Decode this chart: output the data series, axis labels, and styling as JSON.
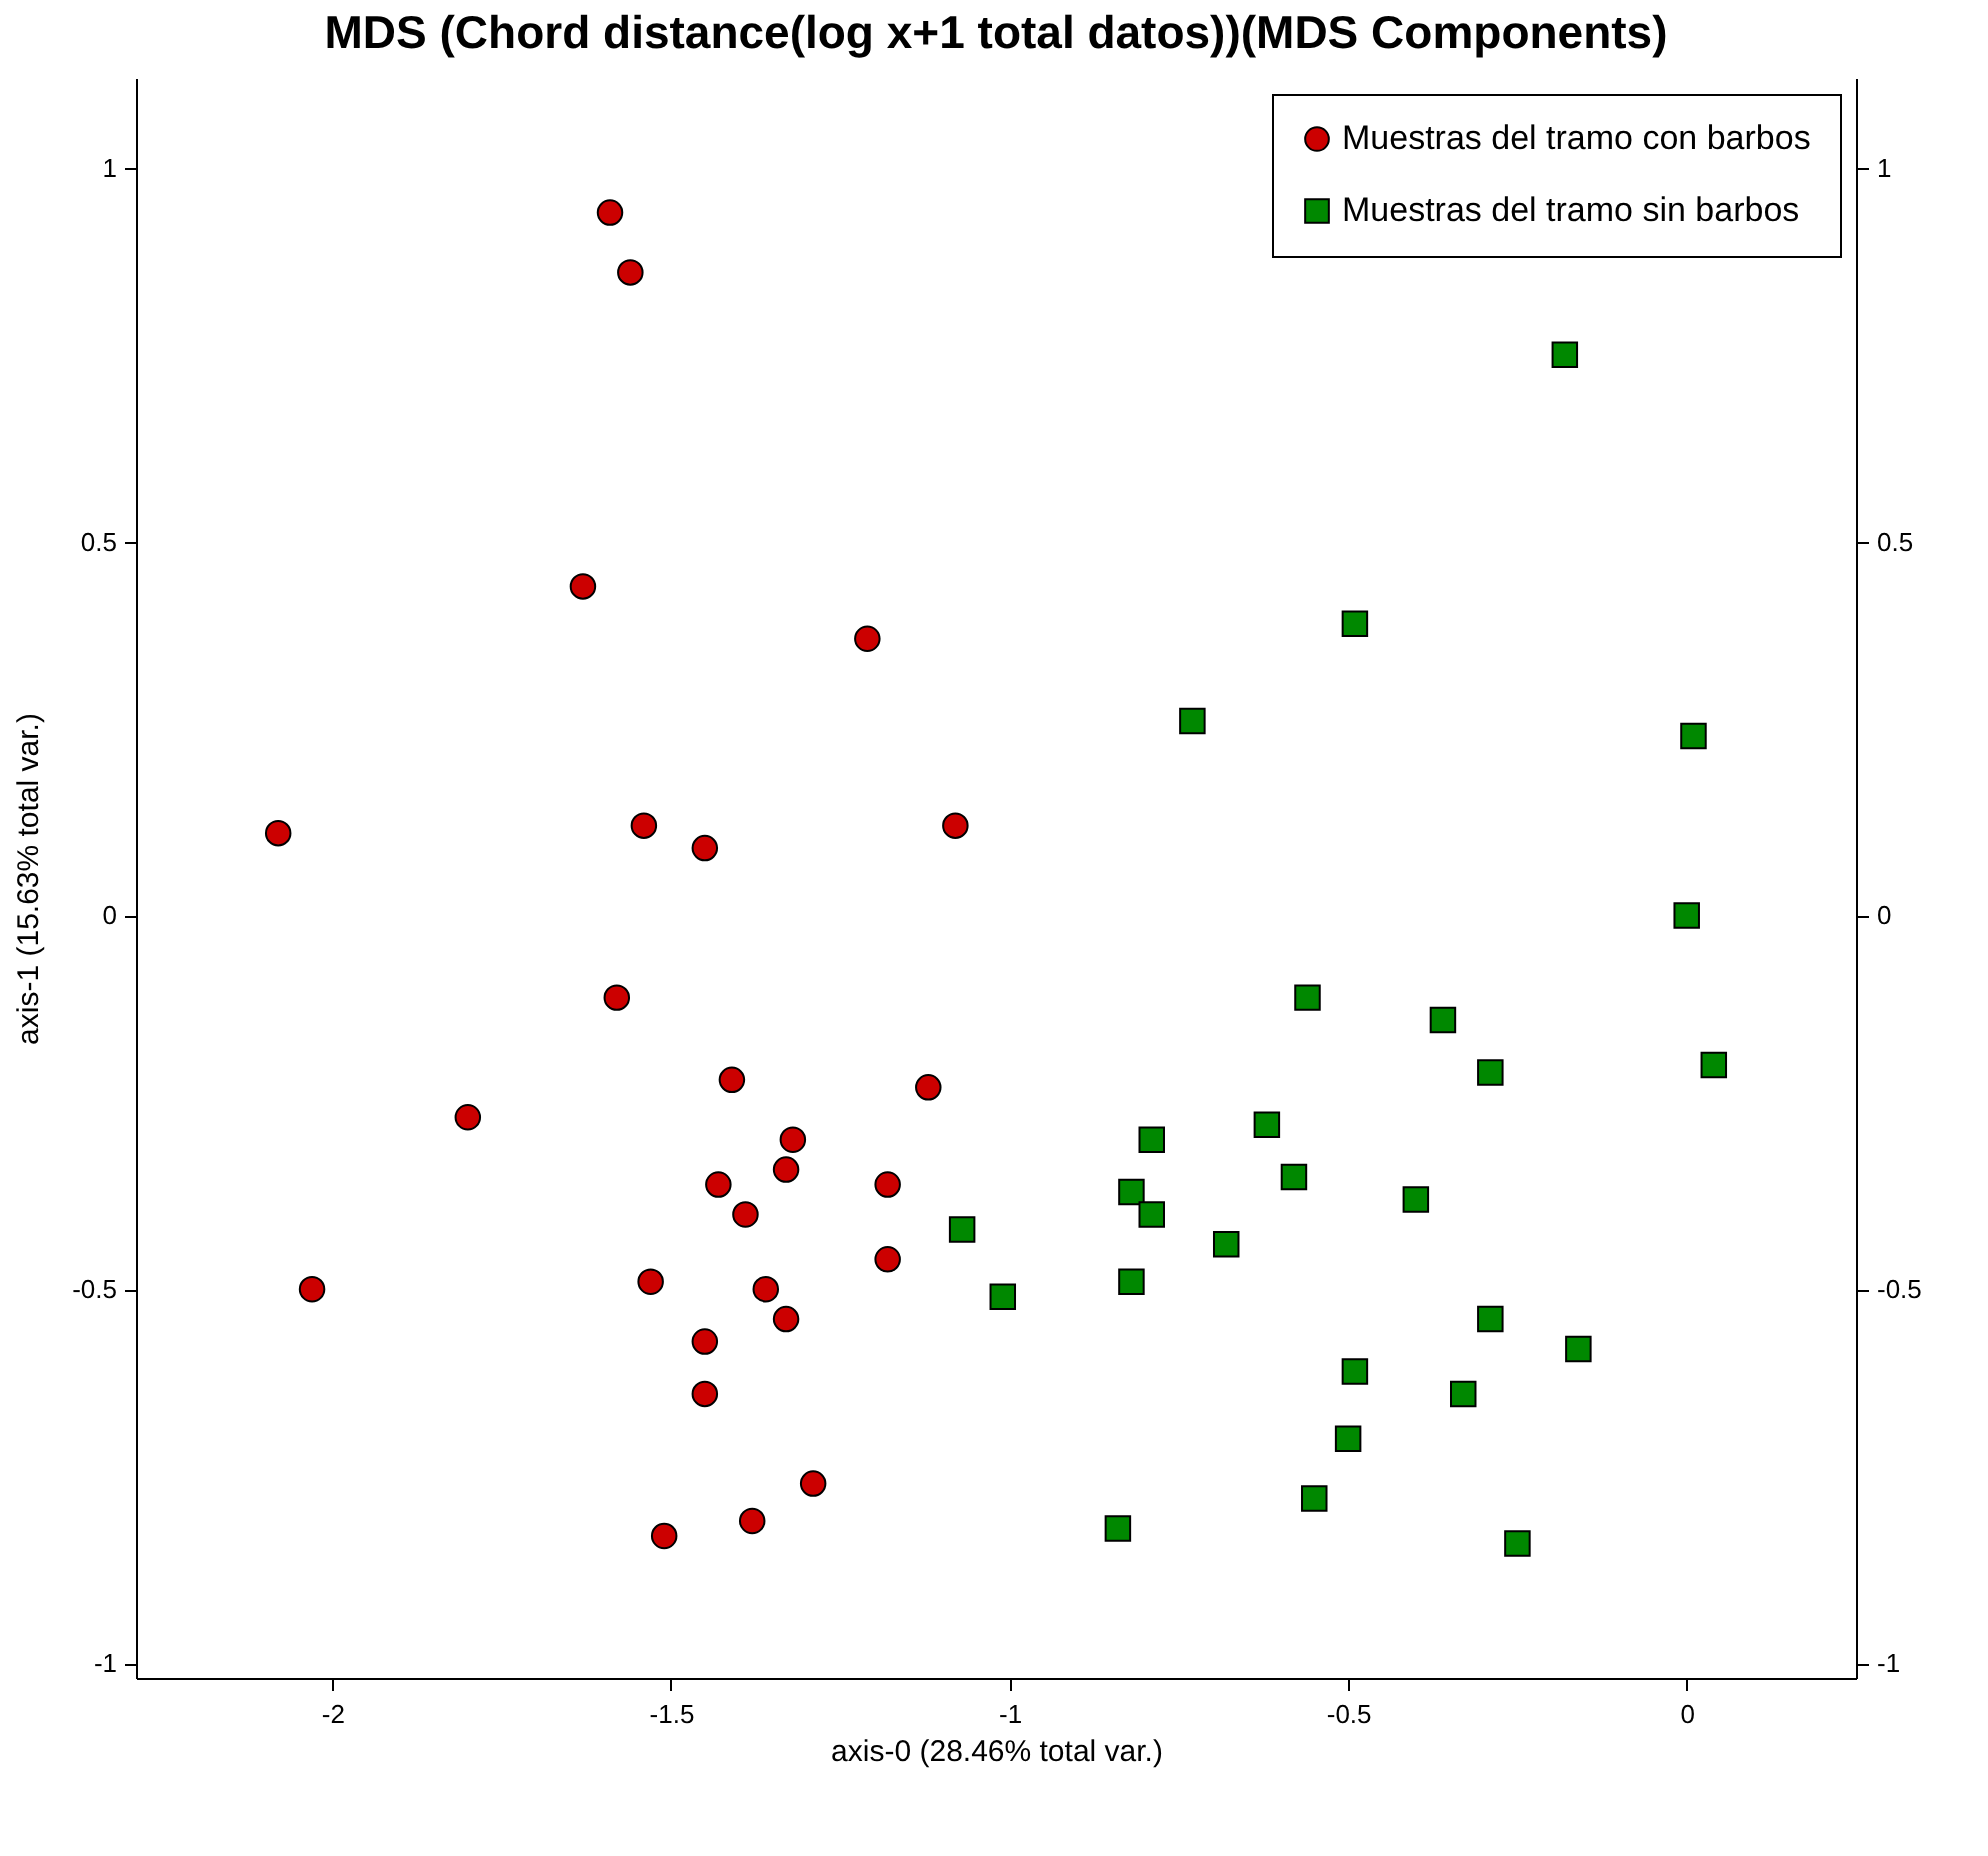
{
  "chart_data": {
    "type": "scatter",
    "title": "MDS (Chord distance(log x+1 total datos))(MDS Components)",
    "xlabel": "axis-0 (28.46% total var.)",
    "ylabel": "axis-1 (15.63% total var.)",
    "xlim": [
      -2.29,
      0.25
    ],
    "xticks": [
      -2,
      -1.5,
      -1,
      -0.5,
      0
    ],
    "ylim": [
      -1.02,
      1.12
    ],
    "yticks": [
      -1,
      -0.5,
      0,
      0.5,
      1
    ],
    "y2lim": [
      -1.02,
      1.12
    ],
    "y2ticks": [
      -1,
      -0.5,
      0,
      0.5,
      1
    ],
    "grid": false,
    "legend": "top right",
    "series": [
      {
        "name": "Muestras del tramo con barbos",
        "color": "#cc0000",
        "marker": "circle",
        "x": [
          -2.08,
          -1.59,
          -1.56,
          -1.63,
          -1.21,
          -1.54,
          -1.45,
          -1.08,
          -1.58,
          -1.8,
          -1.41,
          -1.12,
          -1.32,
          -1.33,
          -1.43,
          -1.39,
          -1.18,
          -1.18,
          -2.03,
          -1.53,
          -1.36,
          -1.33,
          -1.45,
          -1.45,
          -1.29,
          -1.38,
          -1.51
        ],
        "values": [
          0.11,
          0.94,
          0.86,
          0.44,
          0.37,
          0.12,
          0.09,
          0.12,
          -0.11,
          -0.27,
          -0.22,
          -0.23,
          -0.3,
          -0.34,
          -0.36,
          -0.4,
          -0.36,
          -0.46,
          -0.5,
          -0.49,
          -0.5,
          -0.54,
          -0.57,
          -0.64,
          -0.76,
          -0.81,
          -0.83
        ]
      },
      {
        "name": "Muestras del tramo sin barbos",
        "color": "#008800",
        "marker": "square",
        "x": [
          -0.18,
          -0.49,
          -0.73,
          0.01,
          0,
          -0.56,
          -0.36,
          -0.29,
          0.04,
          -0.62,
          -0.79,
          -0.82,
          -0.79,
          -0.58,
          -0.4,
          -1.07,
          -0.68,
          -0.82,
          -1.01,
          -0.29,
          -0.16,
          -0.49,
          -0.33,
          -0.5,
          -0.55,
          -0.84,
          -0.25
        ],
        "values": [
          0.75,
          0.39,
          0.26,
          0.24,
          0,
          -0.11,
          -0.14,
          -0.21,
          -0.2,
          -0.28,
          -0.3,
          -0.37,
          -0.4,
          -0.35,
          -0.38,
          -0.42,
          -0.44,
          -0.49,
          -0.51,
          -0.54,
          -0.58,
          -0.61,
          -0.64,
          -0.7,
          -0.78,
          -0.82,
          -0.84
        ]
      }
    ]
  }
}
